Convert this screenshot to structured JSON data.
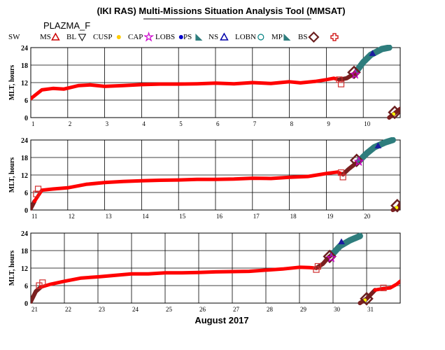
{
  "chart_data": {
    "title": "(IKI RAS) Multi-Missions Situation Analysis Tool (MMSAT)",
    "subtitle": "PLAZMA_F",
    "xlabel": "August 2017",
    "ylabel": "MLT, hours",
    "type": "line",
    "grid": true,
    "ylim": [
      0,
      24
    ],
    "yticks": [
      0,
      6,
      12,
      18,
      24
    ],
    "legend": [
      {
        "label": "SW",
        "color": "#000000",
        "symbol": "none"
      },
      {
        "label": "MS",
        "color": "#cc0000",
        "symbol": "triangle"
      },
      {
        "label": "BL",
        "color": "#000000",
        "symbol": "triangle-down"
      },
      {
        "label": "CUSP",
        "color": "#ffcc00",
        "symbol": "dot"
      },
      {
        "label": "CAP",
        "color": "#cc00cc",
        "symbol": "star"
      },
      {
        "label": "LOBS",
        "color": "#0000cc",
        "symbol": "dot"
      },
      {
        "label": "PS",
        "color": "#2e7d7d",
        "symbol": "wedge"
      },
      {
        "label": "NS",
        "color": "#0000aa",
        "symbol": "triangle"
      },
      {
        "label": "LOBN",
        "color": "#008080",
        "symbol": "circle"
      },
      {
        "label": "MP",
        "color": "#2e7d7d",
        "symbol": "wedge"
      },
      {
        "label": "BS",
        "color": "#6b1f1f",
        "symbol": "diamond"
      },
      {
        "label": "",
        "color": "#cc0000",
        "symbol": "cross"
      }
    ],
    "colors": {
      "SW": "#ff0000",
      "MS": "#7a1f1f",
      "PS": "#2e7d7d",
      "NS": "#1a1aa0",
      "CUSP": "#ffff00",
      "BS": "#e06060"
    },
    "panels": [
      {
        "xlim": [
          1,
          11
        ],
        "xticks": [
          "1",
          "2",
          "3",
          "4",
          "5",
          "6",
          "7",
          "8",
          "9",
          "10"
        ],
        "series": [
          {
            "region": "SW",
            "points": [
              [
                1.0,
                6.5
              ],
              [
                1.3,
                9.5
              ],
              [
                1.6,
                10.0
              ],
              [
                1.9,
                9.8
              ],
              [
                2.3,
                11.0
              ],
              [
                2.6,
                11.2
              ],
              [
                3.0,
                10.7
              ],
              [
                3.5,
                11.0
              ],
              [
                4.0,
                11.3
              ],
              [
                4.5,
                11.5
              ],
              [
                5.0,
                11.5
              ],
              [
                5.5,
                11.6
              ],
              [
                6.0,
                11.8
              ],
              [
                6.5,
                11.6
              ],
              [
                7.0,
                12.0
              ],
              [
                7.5,
                11.7
              ],
              [
                8.0,
                12.3
              ],
              [
                8.3,
                11.9
              ],
              [
                8.7,
                12.4
              ],
              [
                9.0,
                13.0
              ],
              [
                9.2,
                13.5
              ],
              [
                9.35,
                13.0
              ]
            ]
          },
          {
            "region": "MS",
            "points": [
              [
                9.35,
                13.0
              ],
              [
                9.55,
                13.5
              ],
              [
                9.75,
                15.0
              ],
              [
                9.85,
                16.5
              ]
            ]
          },
          {
            "region": "PS",
            "points": [
              [
                9.85,
                16.5
              ],
              [
                10.0,
                19.0
              ],
              [
                10.2,
                21.5
              ],
              [
                10.5,
                23.5
              ],
              [
                10.7,
                24.0
              ]
            ]
          },
          {
            "region": "MS",
            "points": [
              [
                10.7,
                0.0
              ],
              [
                10.85,
                1.5
              ],
              [
                11.0,
                3.0
              ]
            ]
          },
          {
            "region": "CUSP",
            "points": [
              [
                10.82,
                1.2
              ]
            ]
          }
        ],
        "markers": [
          {
            "type": "BS",
            "x": 9.35,
            "y": 13.0
          },
          {
            "type": "BS",
            "x": 9.4,
            "y": 11.5
          },
          {
            "type": "MP",
            "x": 9.75,
            "y": 15.5
          },
          {
            "type": "CAP",
            "x": 9.78,
            "y": 14.8
          },
          {
            "type": "NS",
            "x": 10.25,
            "y": 22.0
          },
          {
            "type": "MP",
            "x": 10.85,
            "y": 1.8
          }
        ]
      },
      {
        "xlim": [
          11,
          21
        ],
        "xticks": [
          "11",
          "12",
          "13",
          "14",
          "15",
          "16",
          "17",
          "18",
          "19",
          "20"
        ],
        "series": [
          {
            "region": "MS",
            "points": [
              [
                11.0,
                0.5
              ],
              [
                11.1,
                3.0
              ]
            ]
          },
          {
            "region": "SW",
            "points": [
              [
                11.1,
                3.0
              ],
              [
                11.3,
                6.8
              ],
              [
                11.6,
                7.2
              ],
              [
                12.0,
                7.6
              ],
              [
                12.5,
                8.8
              ],
              [
                13.0,
                9.4
              ],
              [
                13.5,
                9.8
              ],
              [
                14.0,
                10.0
              ],
              [
                14.5,
                10.2
              ],
              [
                15.0,
                10.3
              ],
              [
                15.5,
                10.5
              ],
              [
                16.0,
                10.5
              ],
              [
                16.5,
                10.6
              ],
              [
                17.0,
                10.9
              ],
              [
                17.5,
                10.8
              ],
              [
                18.0,
                11.2
              ],
              [
                18.5,
                11.5
              ],
              [
                19.0,
                12.5
              ],
              [
                19.3,
                13.0
              ],
              [
                19.45,
                12.2
              ]
            ]
          },
          {
            "region": "MS",
            "points": [
              [
                19.45,
                12.2
              ],
              [
                19.6,
                14.0
              ],
              [
                19.8,
                16.0
              ],
              [
                19.9,
                17.0
              ]
            ]
          },
          {
            "region": "PS",
            "points": [
              [
                19.9,
                17.0
              ],
              [
                20.1,
                19.5
              ],
              [
                20.3,
                21.5
              ],
              [
                20.6,
                23.2
              ],
              [
                20.8,
                24.0
              ]
            ]
          },
          {
            "region": "MS",
            "points": [
              [
                20.8,
                0.0
              ],
              [
                20.95,
                1.0
              ],
              [
                21.0,
                2.0
              ]
            ]
          },
          {
            "region": "CUSP",
            "points": [
              [
                20.9,
                0.8
              ]
            ]
          }
        ],
        "markers": [
          {
            "type": "BS",
            "x": 11.15,
            "y": 5.5
          },
          {
            "type": "BS",
            "x": 11.2,
            "y": 7.2
          },
          {
            "type": "BS",
            "x": 19.4,
            "y": 12.8
          },
          {
            "type": "BS",
            "x": 19.45,
            "y": 11.3
          },
          {
            "type": "MP",
            "x": 19.82,
            "y": 17.0
          },
          {
            "type": "CAP",
            "x": 19.88,
            "y": 16.6
          },
          {
            "type": "NS",
            "x": 20.4,
            "y": 22.0
          },
          {
            "type": "MP",
            "x": 20.92,
            "y": 1.5
          }
        ]
      },
      {
        "xlim": [
          21,
          32
        ],
        "xticks": [
          "21",
          "22",
          "23",
          "24",
          "25",
          "26",
          "27",
          "28",
          "29",
          "30",
          "31"
        ],
        "series": [
          {
            "region": "MS",
            "points": [
              [
                21.0,
                0.5
              ],
              [
                21.15,
                4.0
              ],
              [
                21.3,
                5.5
              ]
            ]
          },
          {
            "region": "SW",
            "points": [
              [
                21.3,
                5.5
              ],
              [
                21.6,
                6.5
              ],
              [
                22.0,
                7.5
              ],
              [
                22.5,
                8.6
              ],
              [
                23.0,
                9.0
              ],
              [
                23.5,
                9.5
              ],
              [
                24.0,
                10.0
              ],
              [
                24.5,
                10.0
              ],
              [
                25.0,
                10.4
              ],
              [
                25.5,
                10.4
              ],
              [
                26.0,
                10.5
              ],
              [
                26.5,
                10.7
              ],
              [
                27.0,
                10.8
              ],
              [
                27.5,
                10.9
              ],
              [
                28.0,
                11.3
              ],
              [
                28.5,
                11.7
              ],
              [
                29.0,
                12.3
              ],
              [
                29.3,
                12.2
              ],
              [
                29.5,
                12.0
              ]
            ]
          },
          {
            "region": "MS",
            "points": [
              [
                29.5,
                12.0
              ],
              [
                29.7,
                13.5
              ],
              [
                29.85,
                15.5
              ],
              [
                30.0,
                17.0
              ]
            ]
          },
          {
            "region": "PS",
            "points": [
              [
                30.0,
                17.0
              ],
              [
                30.2,
                19.5
              ],
              [
                30.5,
                21.5
              ],
              [
                30.8,
                23.0
              ]
            ]
          },
          {
            "region": "MS",
            "points": [
              [
                30.8,
                0.0
              ],
              [
                31.0,
                1.5
              ],
              [
                31.25,
                4.5
              ]
            ]
          },
          {
            "region": "SW",
            "points": [
              [
                31.25,
                4.5
              ],
              [
                31.5,
                5.0
              ],
              [
                31.7,
                5.2
              ],
              [
                31.9,
                6.5
              ],
              [
                32.0,
                7.5
              ]
            ]
          },
          {
            "region": "CUSP",
            "points": [
              [
                30.95,
                1.0
              ]
            ]
          }
        ],
        "markers": [
          {
            "type": "BS",
            "x": 21.25,
            "y": 6.0
          },
          {
            "type": "BS",
            "x": 21.35,
            "y": 7.0
          },
          {
            "type": "BS",
            "x": 29.5,
            "y": 11.5
          },
          {
            "type": "BS",
            "x": 29.55,
            "y": 12.6
          },
          {
            "type": "MP",
            "x": 29.9,
            "y": 16.0
          },
          {
            "type": "CAP",
            "x": 29.95,
            "y": 15.5
          },
          {
            "type": "NS",
            "x": 30.25,
            "y": 21.0
          },
          {
            "type": "MP",
            "x": 31.0,
            "y": 1.5
          },
          {
            "type": "BS",
            "x": 31.5,
            "y": 5.2
          }
        ]
      }
    ]
  }
}
